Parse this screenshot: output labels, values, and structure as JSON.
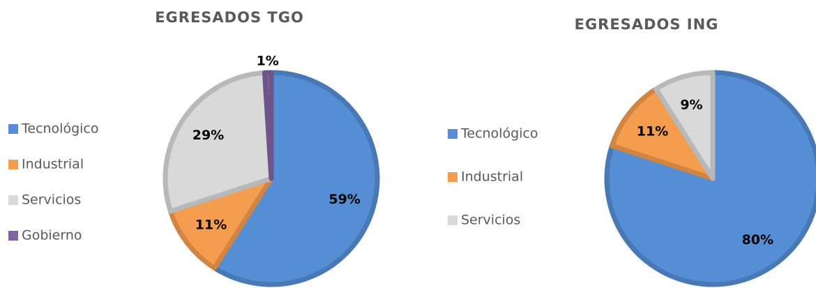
{
  "chart_data": [
    {
      "type": "pie",
      "title": "EGRESADOS TGO",
      "categories": [
        "Tecnológico",
        "Industrial",
        "Servicios",
        "Gobierno"
      ],
      "values": [
        59,
        11,
        29,
        1
      ],
      "value_labels": [
        "59%",
        "11%",
        "29%",
        "1%"
      ],
      "colors": [
        "#558ed5",
        "#f59d4f",
        "#d9d9d9",
        "#8064a2"
      ],
      "legend": "left"
    },
    {
      "type": "pie",
      "title": "EGRESADOS ING",
      "categories": [
        "Tecnológico",
        "Industrial",
        "Servicios"
      ],
      "values": [
        80,
        11,
        9
      ],
      "value_labels": [
        "80%",
        "11%",
        "9%"
      ],
      "colors": [
        "#558ed5",
        "#f59d4f",
        "#d9d9d9"
      ],
      "legend": "left"
    }
  ]
}
